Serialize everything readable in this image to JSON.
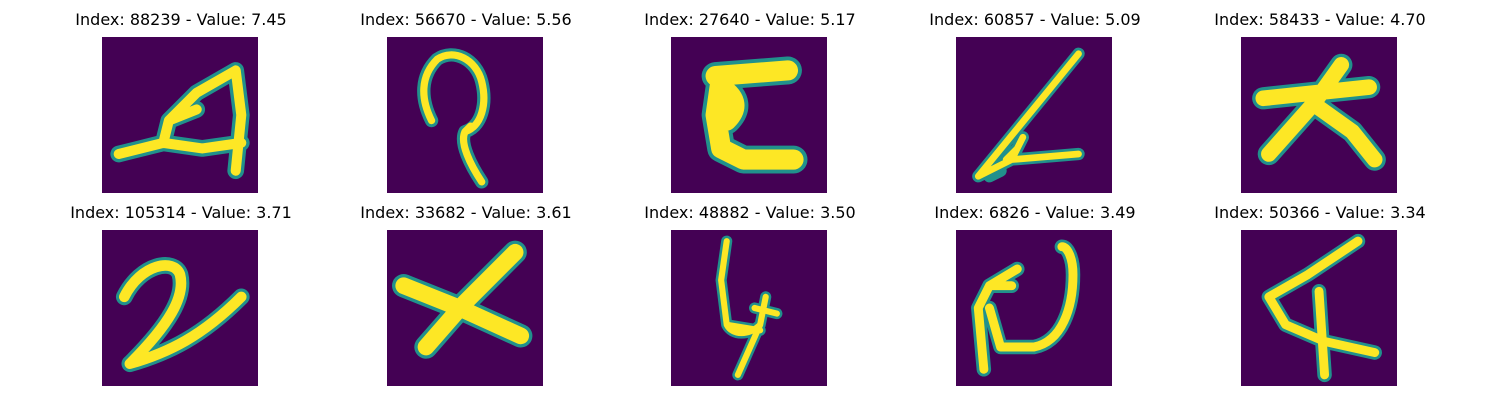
{
  "figure": {
    "colormap": "viridis",
    "background_color": "#440154",
    "stroke_color": "#fde725",
    "edge_color": "#21918c",
    "panels": [
      {
        "title": "Index: 88239 - Value: 7.45"
      },
      {
        "title": "Index: 56670 - Value: 5.56"
      },
      {
        "title": "Index: 27640 - Value: 5.17"
      },
      {
        "title": "Index: 60857 - Value: 5.09"
      },
      {
        "title": "Index: 58433 - Value: 4.70"
      },
      {
        "title": "Index: 105314 - Value: 3.71"
      },
      {
        "title": "Index: 33682 - Value: 3.61"
      },
      {
        "title": "Index: 48882 - Value: 3.50"
      },
      {
        "title": "Index: 6826 - Value: 3.49"
      },
      {
        "title": "Index: 50366 - Value: 3.34"
      }
    ]
  }
}
